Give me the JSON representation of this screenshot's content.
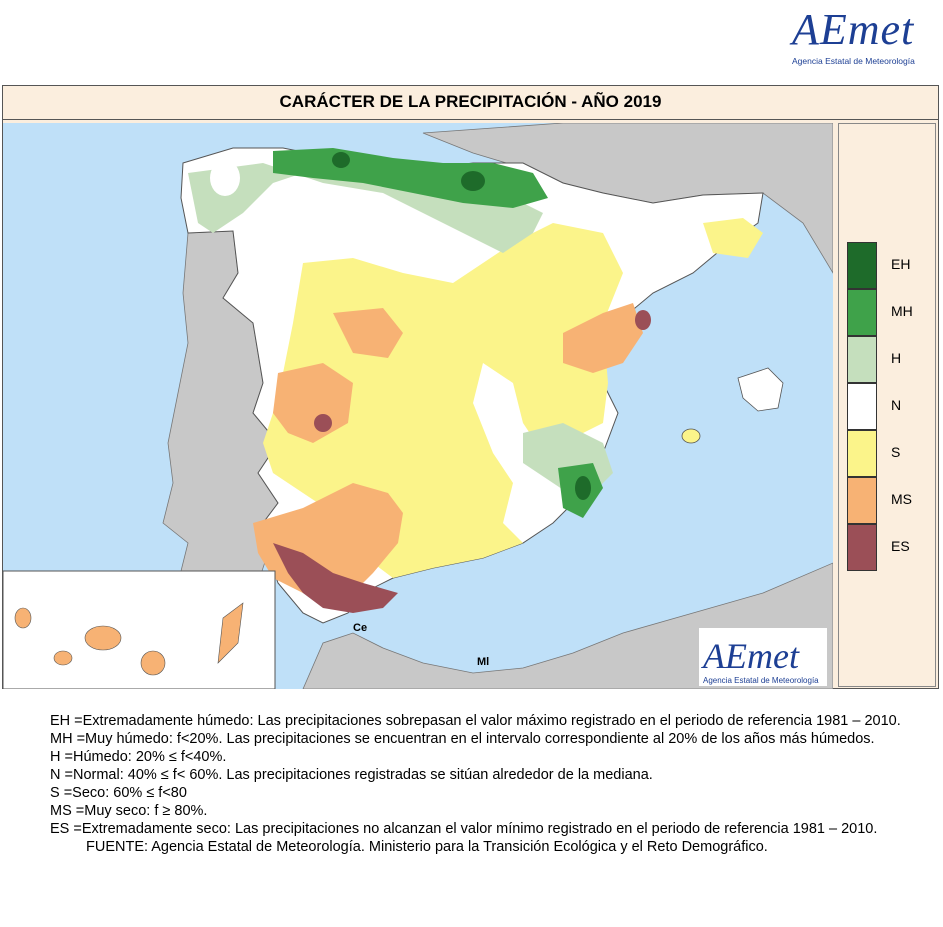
{
  "logo": {
    "brand": "AEmet",
    "subtitle": "Agencia Estatal de Meteorología"
  },
  "map": {
    "title": "CARÁCTER DE LA PRECIPITACIÓN - AÑO  2019",
    "labels": {
      "ceuta": "Ce",
      "melilla": "Ml"
    },
    "colors": {
      "EH": "#1e6b2a",
      "MH": "#3fa24a",
      "H": "#c5dfbd",
      "N": "#ffffff",
      "S": "#fbf48a",
      "MS": "#f7b274",
      "ES": "#9b4f57",
      "sea": "#bfe0f8",
      "land_other": "#c8c8c8"
    }
  },
  "legend": [
    {
      "code": "EH",
      "color": "#1e6b2a"
    },
    {
      "code": "MH",
      "color": "#3fa24a"
    },
    {
      "code": "H",
      "color": "#c5dfbd"
    },
    {
      "code": "N",
      "color": "#ffffff"
    },
    {
      "code": "S",
      "color": "#fbf48a"
    },
    {
      "code": "MS",
      "color": "#f7b274"
    },
    {
      "code": "ES",
      "color": "#9b4f57"
    }
  ],
  "notes": [
    "EH   =Extremadamente húmedo: Las precipitaciones sobrepasan el valor máximo registrado en el periodo de referencia 1981 – 2010.",
    "MH  =Muy húmedo: f<20%. Las precipitaciones se encuentran en el intervalo correspondiente al 20% de los años más húmedos.",
    "H     =Húmedo: 20% ≤ f<40%.",
    "N     =Normal: 40% ≤ f< 60%. Las precipitaciones registradas se sitúan alrededor de la mediana.",
    "S     =Seco: 60%  ≤ f<80",
    "MS =Muy seco: f ≥ 80%.",
    "ES  =Extremadamente  seco: Las precipitaciones no alcanzan el valor mínimo registrado en el periodo de referencia 1981 – 2010."
  ],
  "source": "FUENTE: Agencia Estatal de Meteorología. Ministerio para la Transición Ecológica y el Reto Demográfico."
}
